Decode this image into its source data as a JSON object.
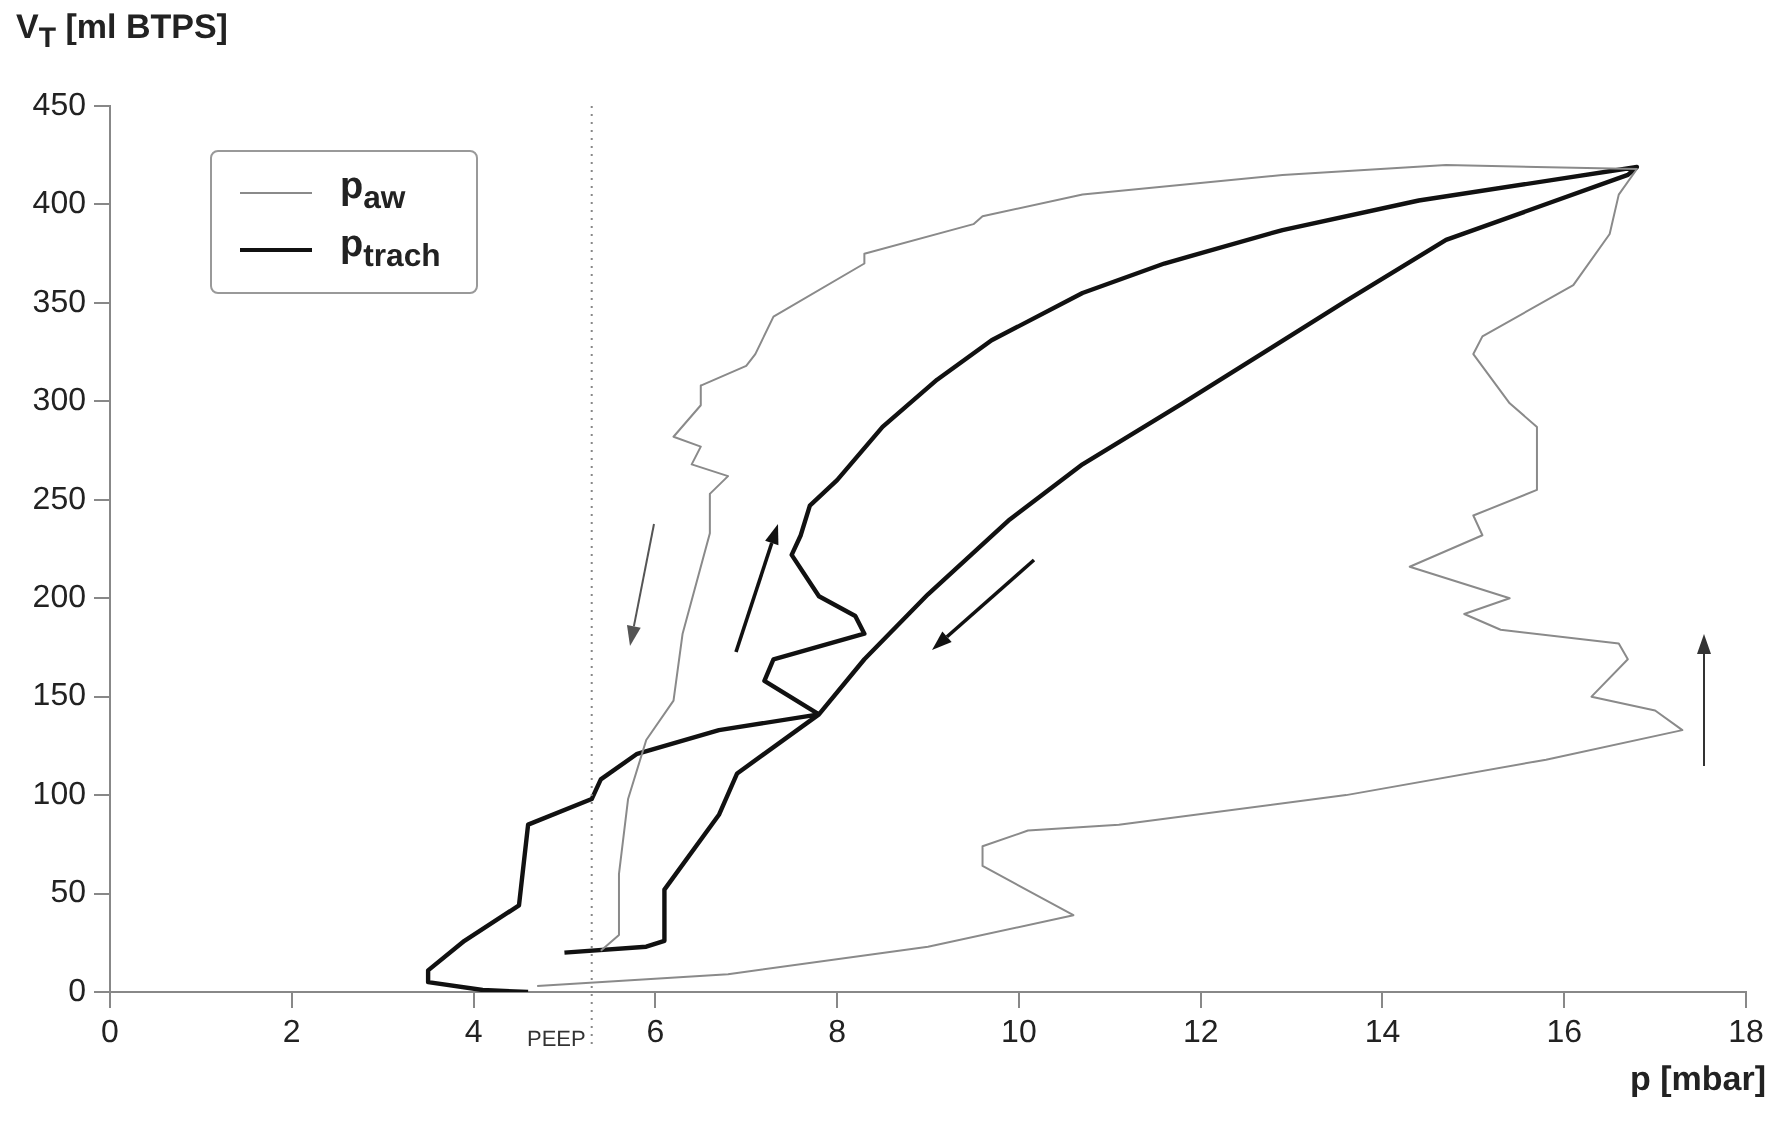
{
  "chart_data": {
    "type": "line",
    "xlabel": "p [mbar]",
    "ylabel": "V$_{T}$ [ml BTPS]",
    "xlim": [
      0,
      18
    ],
    "xticks": [
      0,
      2,
      4,
      6,
      8,
      10,
      12,
      14,
      16,
      18
    ],
    "ylim": [
      0,
      450
    ],
    "yticks": [
      0,
      50,
      100,
      150,
      200,
      250,
      300,
      350,
      400,
      450
    ],
    "grid": false,
    "legend": "top left",
    "line_style": "solid",
    "series": [
      {
        "name": "p$_{aw}$",
        "color": "#8a8a8a",
        "x": [
          4.7,
          6.8,
          9.0,
          10.6,
          9.6,
          9.6,
          10.1,
          11.1,
          13.6,
          15.8,
          17.3,
          17.0,
          16.3,
          16.7,
          16.6,
          15.3,
          14.9,
          15.4,
          14.3,
          15.1,
          15.0,
          15.7,
          15.7,
          15.4,
          15.0,
          15.1,
          16.1,
          16.5,
          16.6,
          16.8,
          14.7,
          12.9,
          10.7,
          9.6,
          9.5,
          8.3,
          8.3,
          7.3,
          7.1,
          7.0,
          6.5,
          6.5,
          6.2,
          6.5,
          6.4,
          6.8,
          6.6,
          6.6,
          6.3,
          6.2,
          5.9,
          5.7,
          5.6,
          5.6,
          5.4
        ],
        "values": [
          3,
          9,
          23,
          39,
          64,
          74,
          82,
          85,
          100,
          118,
          133,
          143,
          150,
          169,
          177,
          184,
          192,
          200,
          216,
          232,
          242,
          255,
          287,
          299,
          324,
          333,
          359,
          385,
          405,
          418,
          420,
          415,
          405,
          394,
          390,
          375,
          370,
          343,
          324,
          318,
          308,
          298,
          282,
          277,
          268,
          262,
          253,
          233,
          182,
          148,
          128,
          98,
          60,
          29,
          21
        ]
      },
      {
        "name": "p$_{trach}$",
        "color": "#111111",
        "x": [
          4.6,
          4.1,
          3.5,
          3.5,
          3.9,
          4.5,
          4.6,
          5.3,
          5.4,
          5.8,
          6.7,
          7.8,
          7.2,
          7.3,
          8.3,
          8.2,
          7.8,
          7.5,
          7.6,
          7.7,
          8.0,
          8.5,
          9.1,
          9.7,
          10.7,
          11.6,
          12.9,
          14.4,
          16.8,
          16.7,
          14.7,
          13.6,
          11.8,
          10.7,
          9.9,
          9.0,
          8.3,
          7.8,
          6.9,
          6.7,
          6.1,
          6.1,
          5.9,
          5.0
        ],
        "values": [
          0,
          1,
          5,
          11,
          26,
          44,
          85,
          98,
          108,
          121,
          133,
          141,
          158,
          169,
          182,
          191,
          201,
          222,
          232,
          247,
          260,
          287,
          311,
          331,
          355,
          370,
          387,
          402,
          419,
          415,
          382,
          351,
          299,
          268,
          240,
          202,
          169,
          141,
          111,
          90,
          52,
          26,
          23,
          20
        ]
      }
    ],
    "ref_lines": [
      {
        "axis": "x",
        "value": 5.3,
        "label": "PEEP",
        "color": "#888888",
        "line_style": "dotted"
      }
    ]
  }
}
